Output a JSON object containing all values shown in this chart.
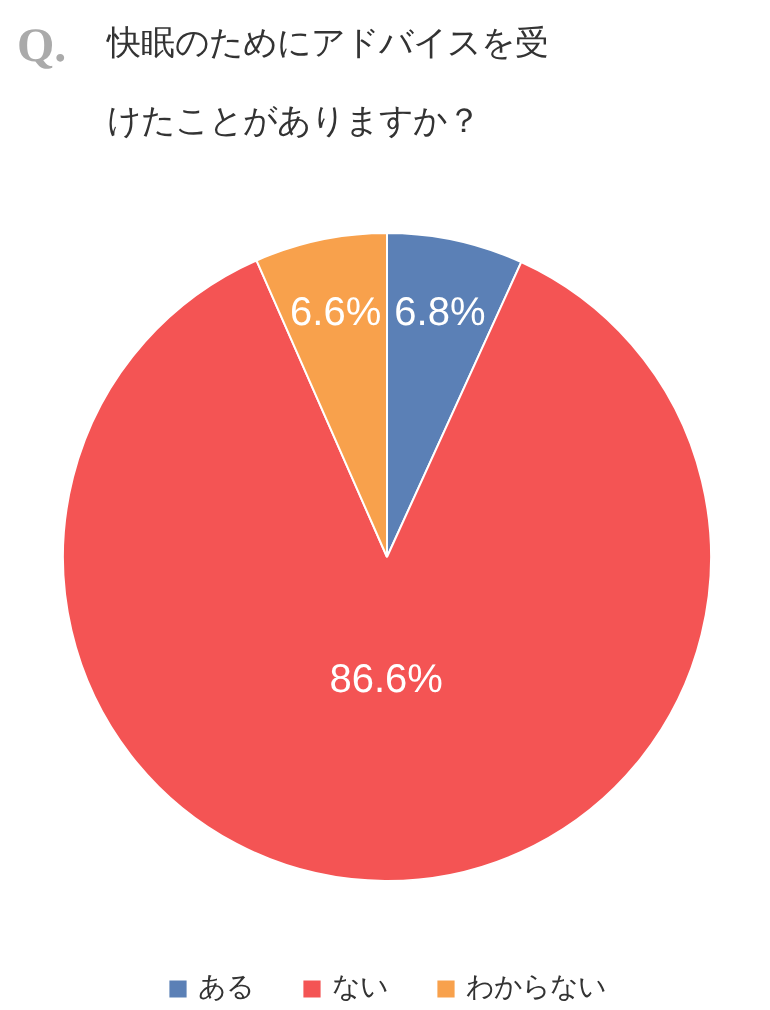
{
  "chart_data": {
    "type": "pie",
    "title": "Q. 快眠のためにアドバイスを受けたことがありますか？",
    "categories": [
      "ある",
      "ない",
      "わからない"
    ],
    "values": [
      6.8,
      86.6,
      6.6
    ],
    "colors": [
      "#5b80b6",
      "#f45454",
      "#f8a14c"
    ],
    "value_labels": [
      "6.8%",
      "86.6%",
      "6.6%"
    ],
    "legend": "bottom"
  }
}
